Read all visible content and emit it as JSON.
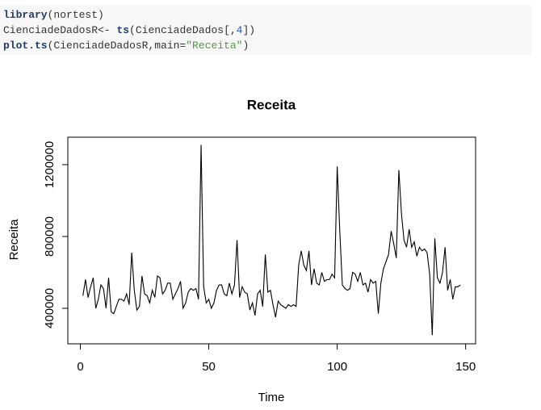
{
  "code": {
    "lines": [
      {
        "tokens": [
          {
            "text": "library",
            "color": "#1f3b6e",
            "bold": true
          },
          {
            "text": "(nortest)",
            "color": "#333333"
          }
        ]
      },
      {
        "tokens": [
          {
            "text": "CienciadeDadosR<- ",
            "color": "#333333"
          },
          {
            "text": "ts",
            "color": "#1f3b6e",
            "bold": true
          },
          {
            "text": "(CienciadeDados[,",
            "color": "#333333"
          },
          {
            "text": "4",
            "color": "#2a57b8"
          },
          {
            "text": "])",
            "color": "#333333"
          }
        ]
      },
      {
        "tokens": [
          {
            "text": "plot.ts",
            "color": "#1f3b6e",
            "bold": true
          },
          {
            "text": "(CienciadeDadosR,main=",
            "color": "#333333"
          },
          {
            "text": "\"Receita\"",
            "color": "#4d9a3a"
          },
          {
            "text": ")",
            "color": "#333333"
          }
        ]
      }
    ]
  },
  "chart_data": {
    "type": "line",
    "title": "Receita",
    "x_label": "Time",
    "y_label": "Receita",
    "color": "#000000",
    "x": [
      1,
      2,
      3,
      4,
      5,
      6,
      7,
      8,
      9,
      10,
      11,
      12,
      13,
      14,
      15,
      16,
      17,
      18,
      19,
      20,
      21,
      22,
      23,
      24,
      25,
      26,
      27,
      28,
      29,
      30,
      31,
      32,
      33,
      34,
      35,
      36,
      37,
      38,
      39,
      40,
      41,
      42,
      43,
      44,
      45,
      46,
      47,
      48,
      49,
      50,
      51,
      52,
      53,
      54,
      55,
      56,
      57,
      58,
      59,
      60,
      61,
      62,
      63,
      64,
      65,
      66,
      67,
      68,
      69,
      70,
      71,
      72,
      73,
      74,
      75,
      76,
      77,
      78,
      79,
      80,
      81,
      82,
      83,
      84,
      85,
      86,
      87,
      88,
      89,
      90,
      91,
      92,
      93,
      94,
      95,
      96,
      97,
      98,
      99,
      100,
      101,
      102,
      103,
      104,
      105,
      106,
      107,
      108,
      109,
      110,
      111,
      112,
      113,
      114,
      115,
      116,
      117,
      118,
      119,
      120,
      121,
      122,
      123,
      124,
      125,
      126,
      127,
      128,
      129,
      130,
      131,
      132,
      133,
      134,
      135,
      136,
      137,
      138,
      139,
      140,
      141,
      142,
      143,
      144,
      145,
      146,
      147,
      148
    ],
    "values": [
      470000,
      560000,
      460000,
      520000,
      570000,
      400000,
      450000,
      530000,
      510000,
      400000,
      570000,
      380000,
      370000,
      410000,
      450000,
      450000,
      440000,
      480000,
      420000,
      710000,
      500000,
      390000,
      410000,
      580000,
      480000,
      470000,
      430000,
      500000,
      460000,
      580000,
      570000,
      480000,
      500000,
      540000,
      540000,
      450000,
      480000,
      510000,
      550000,
      400000,
      430000,
      490000,
      510000,
      500000,
      510000,
      450000,
      1310000,
      520000,
      430000,
      450000,
      400000,
      430000,
      500000,
      530000,
      530000,
      480000,
      470000,
      540000,
      480000,
      530000,
      780000,
      460000,
      520000,
      490000,
      480000,
      390000,
      430000,
      360000,
      480000,
      500000,
      410000,
      700000,
      490000,
      500000,
      420000,
      350000,
      440000,
      420000,
      410000,
      400000,
      420000,
      410000,
      420000,
      410000,
      640000,
      720000,
      640000,
      610000,
      720000,
      530000,
      620000,
      540000,
      530000,
      600000,
      550000,
      560000,
      560000,
      590000,
      570000,
      1190000,
      830000,
      530000,
      510000,
      500000,
      510000,
      600000,
      590000,
      550000,
      600000,
      530000,
      540000,
      490000,
      560000,
      540000,
      550000,
      370000,
      540000,
      620000,
      660000,
      700000,
      830000,
      760000,
      680000,
      1170000,
      930000,
      780000,
      740000,
      840000,
      740000,
      770000,
      690000,
      740000,
      720000,
      730000,
      710000,
      590000,
      250000,
      790000,
      570000,
      540000,
      600000,
      740000,
      500000,
      560000,
      450000,
      520000,
      520000,
      530000
    ],
    "xlim": [
      -4.88,
      153.88
    ],
    "xticks": [
      0,
      50,
      100,
      150
    ],
    "ylim": [
      202000,
      1353000
    ],
    "yticks": [
      400000,
      800000,
      1200000
    ]
  }
}
